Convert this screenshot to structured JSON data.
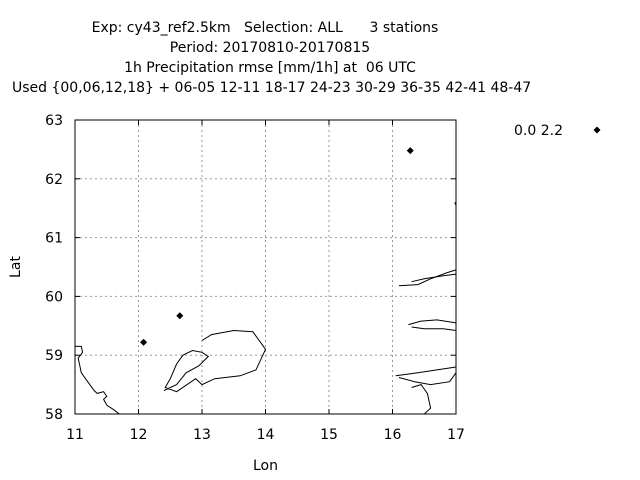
{
  "chart_data": {
    "type": "scatter",
    "title_lines": [
      "Exp: cy43_ref2.5km   Selection: ALL      3 stations",
      "Period: 20170810-20170815",
      "1h Precipitation rmse [mm/1h] at  06 UTC",
      "Used {00,06,12,18} + 06-05 12-11 18-17 24-23 30-29 36-35 42-41 48-47"
    ],
    "xlabel": "Lon",
    "ylabel": "Lat",
    "xlim": [
      11,
      17
    ],
    "ylim": [
      58,
      63
    ],
    "xticks": [
      "11",
      "12",
      "13",
      "14",
      "15",
      "16",
      "17"
    ],
    "yticks": [
      "58",
      "59",
      "60",
      "61",
      "62",
      "63"
    ],
    "grid": true,
    "legend": {
      "label": "0.0 2.2",
      "placement": "top-right outside"
    },
    "series": [
      {
        "points": [
          {
            "lon": 12.08,
            "lat": 59.22
          },
          {
            "lon": 12.65,
            "lat": 59.67
          },
          {
            "lon": 16.28,
            "lat": 62.48
          }
        ]
      }
    ],
    "coastlines": [
      [
        [
          11.0,
          59.15
        ],
        [
          11.1,
          59.15
        ],
        [
          11.12,
          59.05
        ],
        [
          11.05,
          58.95
        ],
        [
          11.1,
          58.7
        ],
        [
          11.2,
          58.55
        ],
        [
          11.3,
          58.4
        ],
        [
          11.35,
          58.35
        ],
        [
          11.45,
          58.38
        ],
        [
          11.5,
          58.3
        ],
        [
          11.45,
          58.25
        ],
        [
          11.5,
          58.15
        ],
        [
          11.6,
          58.08
        ],
        [
          11.7,
          58.0
        ]
      ],
      [
        [
          12.4,
          58.4
        ],
        [
          12.6,
          58.5
        ],
        [
          12.75,
          58.7
        ],
        [
          12.95,
          58.82
        ],
        [
          13.1,
          58.98
        ],
        [
          13.0,
          59.05
        ],
        [
          12.85,
          59.08
        ],
        [
          12.7,
          59.0
        ],
        [
          12.6,
          58.85
        ],
        [
          12.5,
          58.6
        ],
        [
          12.42,
          58.45
        ],
        [
          12.6,
          58.38
        ],
        [
          12.9,
          58.6
        ],
        [
          13.0,
          58.5
        ],
        [
          13.2,
          58.6
        ],
        [
          13.6,
          58.65
        ],
        [
          13.85,
          58.75
        ],
        [
          14.0,
          59.1
        ],
        [
          13.9,
          59.25
        ],
        [
          13.8,
          59.4
        ],
        [
          13.5,
          59.42
        ],
        [
          13.15,
          59.35
        ],
        [
          13.0,
          59.25
        ]
      ],
      [
        [
          16.1,
          60.18
        ],
        [
          16.4,
          60.2
        ],
        [
          16.6,
          60.3
        ],
        [
          16.85,
          60.4
        ],
        [
          17.0,
          60.45
        ]
      ],
      [
        [
          16.3,
          60.25
        ],
        [
          16.5,
          60.3
        ],
        [
          16.8,
          60.35
        ],
        [
          17.0,
          60.38
        ]
      ],
      [
        [
          16.25,
          59.52
        ],
        [
          16.45,
          59.58
        ],
        [
          16.7,
          59.6
        ],
        [
          17.0,
          59.55
        ]
      ],
      [
        [
          16.3,
          59.48
        ],
        [
          16.5,
          59.45
        ],
        [
          16.8,
          59.45
        ],
        [
          17.0,
          59.42
        ]
      ],
      [
        [
          16.05,
          58.65
        ],
        [
          16.4,
          58.7
        ],
        [
          16.7,
          58.75
        ],
        [
          17.0,
          58.8
        ]
      ],
      [
        [
          16.1,
          58.62
        ],
        [
          16.35,
          58.55
        ],
        [
          16.6,
          58.5
        ],
        [
          16.9,
          58.55
        ],
        [
          17.0,
          58.7
        ]
      ],
      [
        [
          16.3,
          58.45
        ],
        [
          16.45,
          58.5
        ],
        [
          16.55,
          58.35
        ],
        [
          16.6,
          58.1
        ],
        [
          16.5,
          58.0
        ]
      ],
      [
        [
          16.98,
          61.6
        ],
        [
          17.0,
          61.55
        ]
      ]
    ]
  }
}
